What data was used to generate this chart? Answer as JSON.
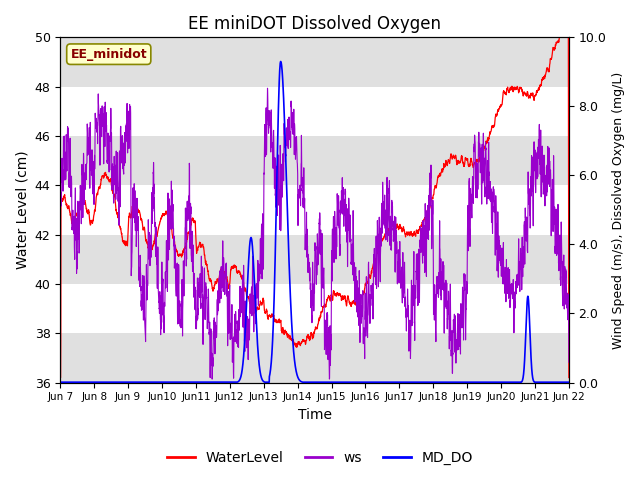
{
  "title": "EE miniDOT Dissolved Oxygen",
  "ylabel_left": "Water Level (cm)",
  "ylabel_right": "Wind Speed (m/s), Dissolved Oxygen (mg/L)",
  "xlabel": "Time",
  "ylim_left": [
    36,
    50
  ],
  "ylim_right": [
    0.0,
    10.0
  ],
  "yticks_left": [
    36,
    38,
    40,
    42,
    44,
    46,
    48,
    50
  ],
  "yticks_right": [
    0.0,
    2.0,
    4.0,
    6.0,
    8.0,
    10.0
  ],
  "yticklabels_right": [
    "0.0",
    "2.0",
    "4.0",
    "6.0",
    "8.0",
    "10.0"
  ],
  "site_label": "EE_minidot",
  "legend_labels": [
    "WaterLevel",
    "ws",
    "MD_DO"
  ],
  "legend_colors": [
    "#ff0000",
    "#9900cc",
    "#0000ff"
  ],
  "background_color": "#ffffff",
  "grid_band_color": "#e0e0e0",
  "line_colors": {
    "WaterLevel": "#ff0000",
    "ws": "#9900cc",
    "MD_DO": "#0000ff"
  },
  "xticklabels": [
    "Jun 7",
    "Jun 8",
    "Jun 9",
    "Jun 10",
    "Jun 11",
    "Jun 12",
    "Jun 13",
    "Jun 14",
    "Jun 15",
    "Jun 16",
    "Jun 17",
    "Jun 18",
    "Jun 19",
    "Jun 20",
    "Jun 21",
    "Jun 22"
  ],
  "xticklabels_compact": [
    "Jun 7",
    "Jun 8",
    "Jun 9",
    "Jun10",
    "Jun11",
    "Jun12",
    "Jun13",
    "Jun14",
    "Jun15",
    "Jun16",
    "Jun17",
    "Jun18",
    "Jun19",
    "Jun20",
    "Jun21",
    "Jun 22"
  ]
}
